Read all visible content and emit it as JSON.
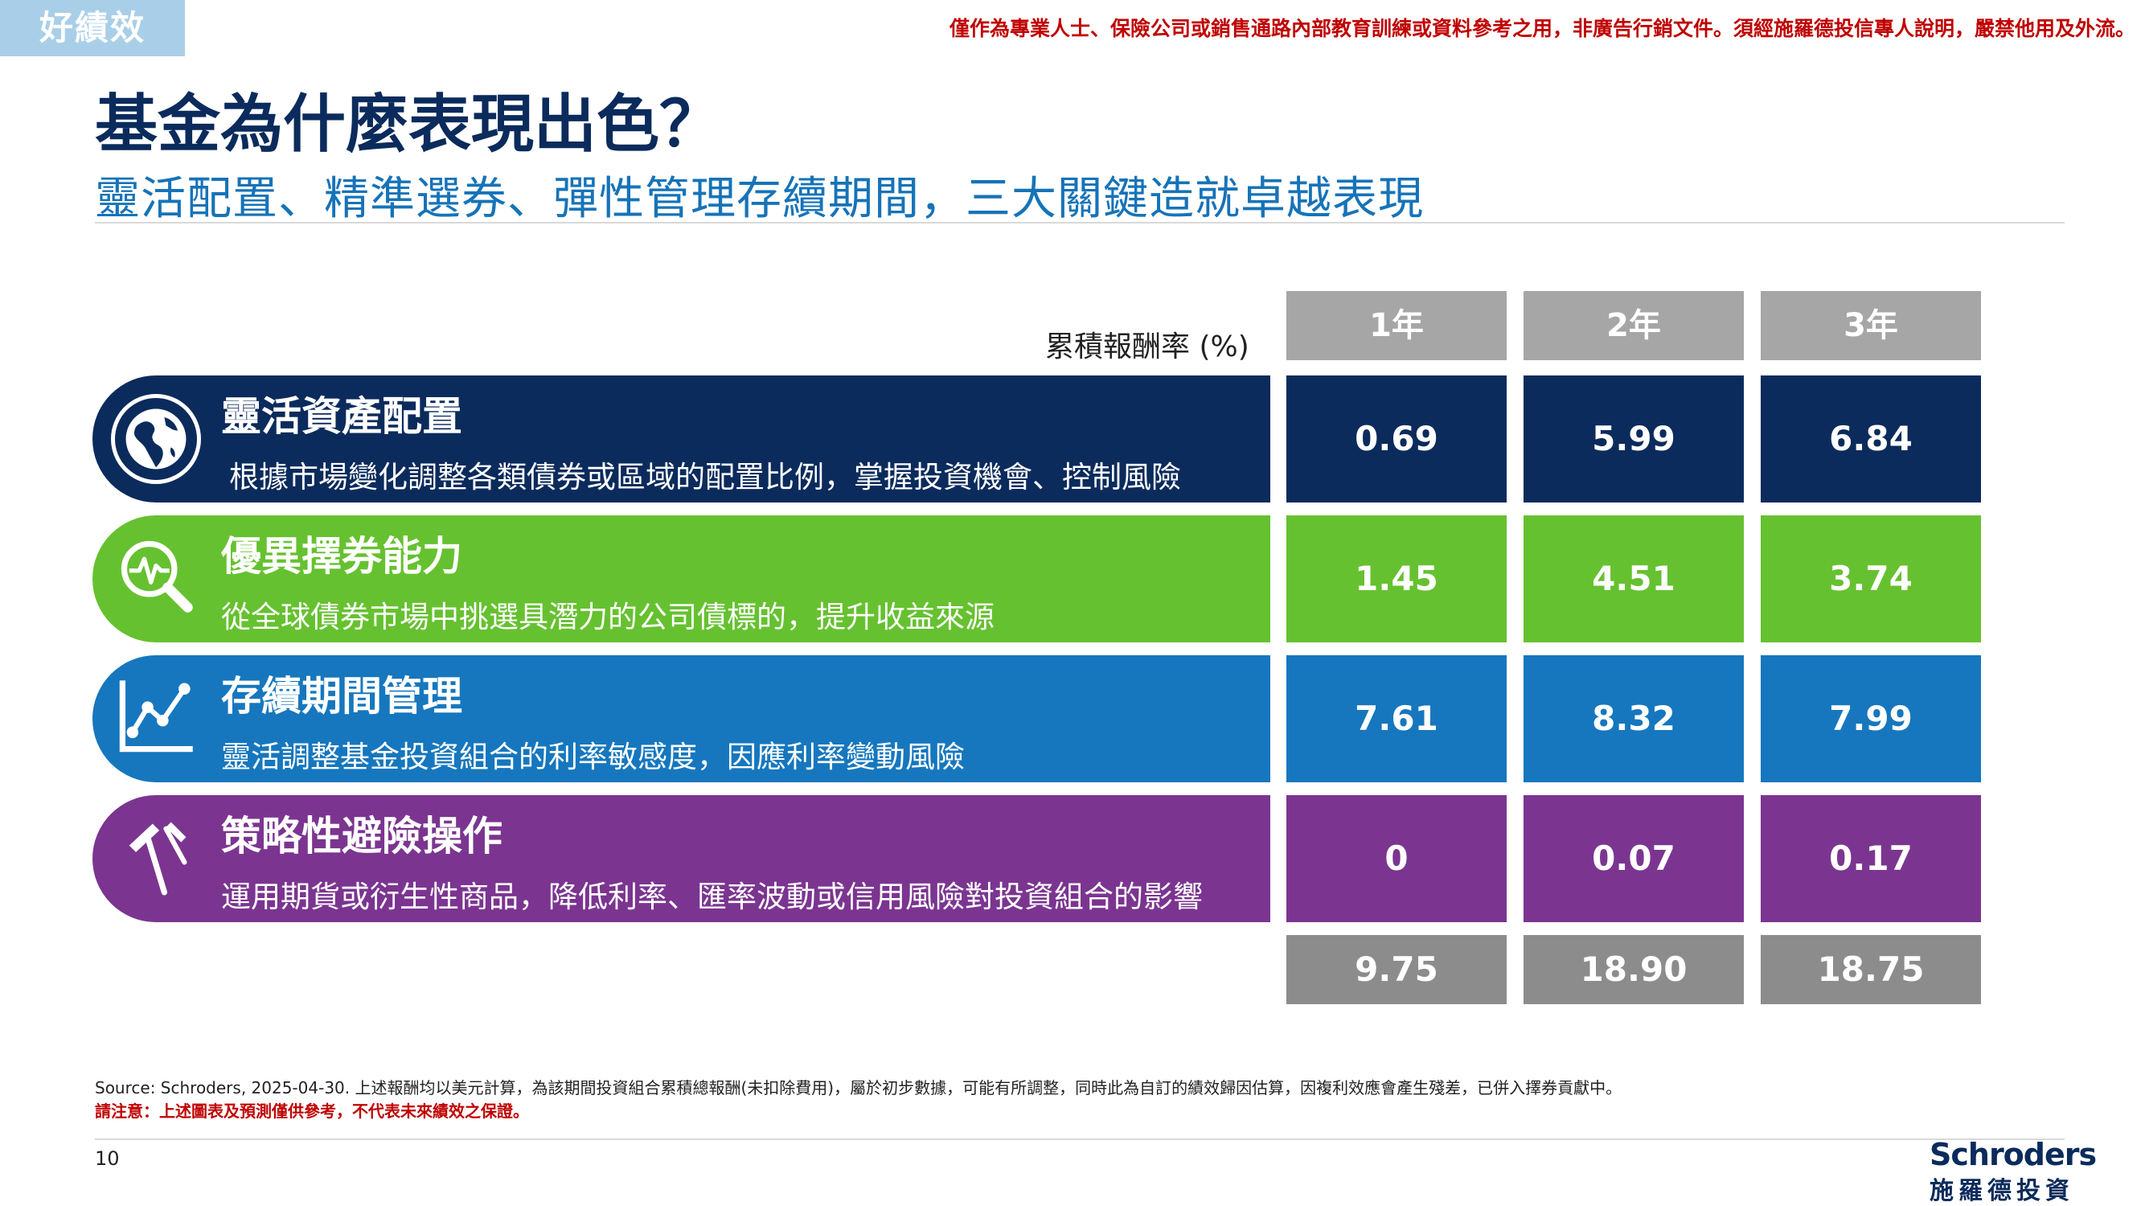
{
  "header": {
    "tag": "好績效",
    "disclaimer": "僅作為專業人士、保險公司或銷售通路內部教育訓練或資料參考之用，非廣告行銷文件。須經施羅德投信專人說明，嚴禁他用及外流。"
  },
  "title": "基金為什麼表現出色？",
  "subtitle": "靈活配置、精準選券、彈性管理存續期間，三大關鍵造就卓越表現",
  "table": {
    "column_label": "累積報酬率 (%)",
    "columns": [
      "1年",
      "2年",
      "3年"
    ],
    "rows": [
      {
        "title": "靈活資產配置",
        "desc": "根據市場變化調整各類債券或區域的配置比例，掌握投資機會、控制風險",
        "icon": "globe-icon",
        "color": "#0b2b5c",
        "values": [
          "0.69",
          "5.99",
          "6.84"
        ]
      },
      {
        "title": "優異擇券能力",
        "desc": "從全球債券市場中挑選具潛力的公司債標的，提升收益來源",
        "icon": "magnifier-pulse-icon",
        "color": "#66c130",
        "values": [
          "1.45",
          "4.51",
          "3.74"
        ]
      },
      {
        "title": "存續期間管理",
        "desc": "靈活調整基金投資組合的利率敏感度，因應利率變動風險",
        "icon": "line-chart-icon",
        "color": "#1677be",
        "values": [
          "7.61",
          "8.32",
          "7.99"
        ]
      },
      {
        "title": "策略性避險操作",
        "desc": "運用期貨或衍生性商品，降低利率、匯率波動或信用風險對投資組合的影響",
        "icon": "hammer-icon",
        "color": "#7b3590",
        "values": [
          "0",
          "0.07",
          "0.17"
        ]
      }
    ],
    "totals": [
      "9.75",
      "18.90",
      "18.75"
    ]
  },
  "footer": {
    "source": "Source: Schroders, 2025-04-30. 上述報酬均以美元計算，為該期間投資組合累積總報酬(未扣除費用)，屬於初步數據，可能有所調整，同時此為自訂的績效歸因估算，因複利效應會產生殘差，已併入擇券貢獻中。",
    "note": "請注意：上述圖表及預測僅供參考，不代表未來績效之保證。",
    "page": "10",
    "logo_en": "Schroders",
    "logo_zh": "施羅德投資"
  }
}
